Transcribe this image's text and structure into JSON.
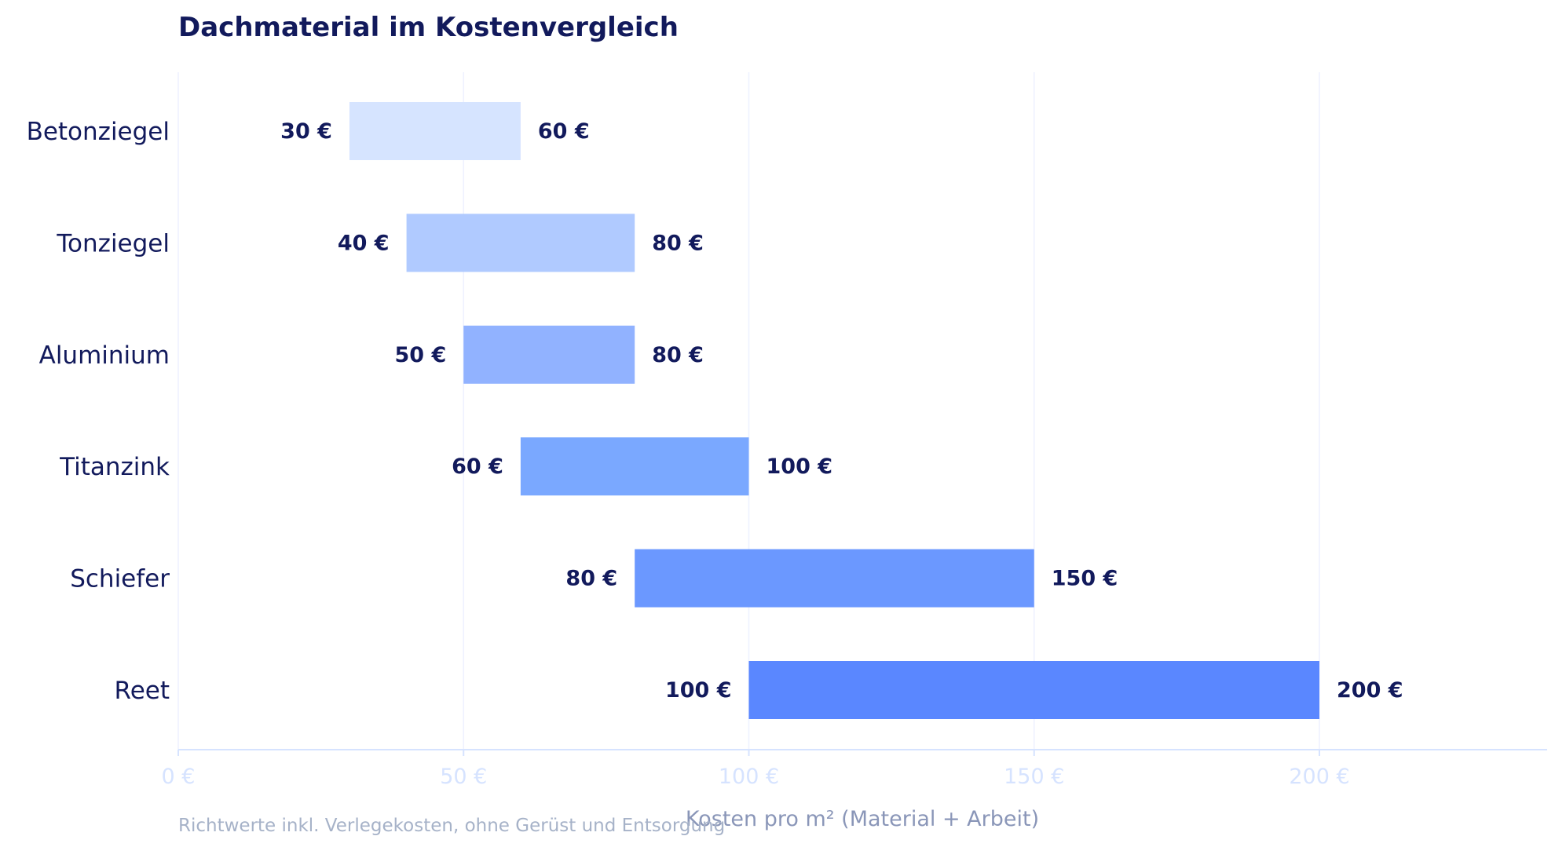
{
  "chart_data": {
    "type": "bar",
    "subtype": "floating-range-horizontal",
    "title": "Dachmaterial im Kostenvergleich",
    "xlabel": "Kosten pro m² (Material + Arbeit)",
    "ylabel": "",
    "xlim": [
      0,
      240
    ],
    "xticks": [
      0,
      50,
      100,
      150,
      200
    ],
    "xtick_labels": [
      "0 €",
      "50 €",
      "100 €",
      "150 €",
      "200 €"
    ],
    "grid": "vertical",
    "categories": [
      "Betonziegel",
      "Tonziegel",
      "Aluminium",
      "Titanzink",
      "Schiefer",
      "Reet"
    ],
    "low": [
      30,
      40,
      50,
      60,
      80,
      100
    ],
    "high": [
      60,
      80,
      80,
      100,
      150,
      200
    ],
    "low_labels": [
      "30 €",
      "40 €",
      "50 €",
      "60 €",
      "80 €",
      "100 €"
    ],
    "high_labels": [
      "60 €",
      "80 €",
      "80 €",
      "100 €",
      "150 €",
      "200 €"
    ],
    "colors": [
      "#d6e4ff",
      "#b0caff",
      "#91b2ff",
      "#7aa8ff",
      "#6b98ff",
      "#5a87ff"
    ],
    "note": "Richtwerte inkl. Verlegekosten, ohne Gerüst und Entsorgung"
  }
}
